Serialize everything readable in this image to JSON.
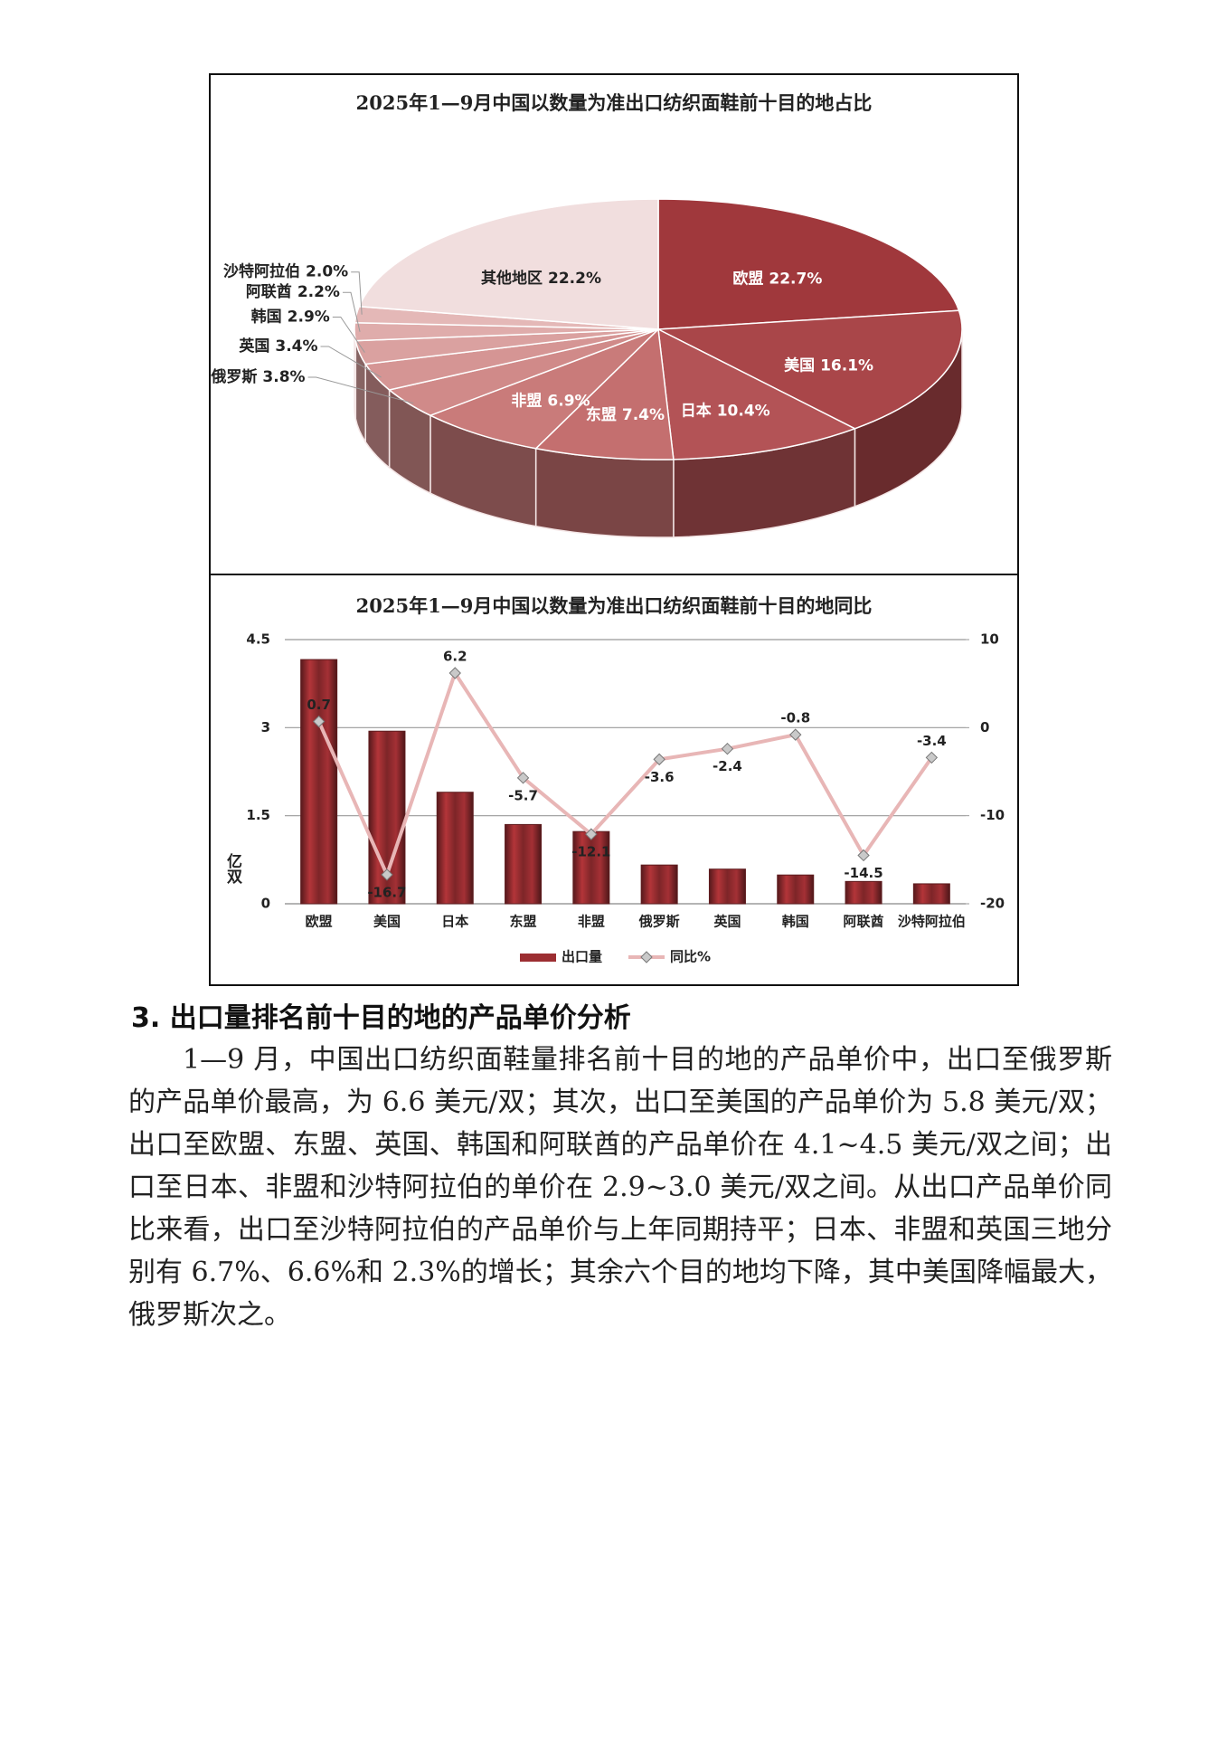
{
  "chart_data": [
    {
      "type": "pie",
      "title": "2025年1—9月中国以数量为准出口纺织面鞋前十目的地占比",
      "categories": [
        "欧盟",
        "美国",
        "日本",
        "东盟",
        "非盟",
        "俄罗斯",
        "英国",
        "韩国",
        "阿联酋",
        "沙特阿拉伯",
        "其他地区"
      ],
      "values": [
        22.7,
        16.1,
        10.4,
        7.4,
        6.9,
        3.8,
        3.4,
        2.9,
        2.2,
        2.0,
        22.2
      ],
      "value_labels": [
        "22.7%",
        "16.1%",
        "10.4%",
        "7.4%",
        "6.9%",
        "3.8%",
        "3.4%",
        "2.9%",
        "2.2%",
        "2.0%",
        "22.2%"
      ],
      "colors": [
        "#a0383c",
        "#a94649",
        "#b35356",
        "#c46f6f",
        "#c97b7a",
        "#d08a89",
        "#d59594",
        "#daa1a0",
        "#dfacab",
        "#e4b8b7",
        "#f1dede"
      ]
    },
    {
      "type": "bar",
      "title": "2025年1—9月中国以数量为准出口纺织面鞋前十目的地同比",
      "categories": [
        "欧盟",
        "美国",
        "日本",
        "东盟",
        "非盟",
        "俄罗斯",
        "英国",
        "韩国",
        "阿联酋",
        "沙特阿拉伯"
      ],
      "ylabel": "亿双",
      "series": [
        {
          "name": "出口量",
          "color": "#9c2e32",
          "values": [
            4.16,
            2.94,
            1.9,
            1.35,
            1.23,
            0.66,
            0.59,
            0.49,
            0.38,
            0.34
          ]
        },
        {
          "name": "同比%",
          "type": "line",
          "axis": "y2",
          "color": "#e8b6b6",
          "values": [
            0.7,
            -16.7,
            6.2,
            -5.7,
            -12.1,
            -3.6,
            -2.4,
            -0.8,
            -14.5,
            -3.4
          ]
        }
      ],
      "ylim": [
        0,
        4.5
      ],
      "yticks": [
        0,
        1.5,
        3,
        4.5
      ],
      "y2lim": [
        -20,
        10
      ],
      "y2ticks": [
        -20,
        -10,
        0,
        10
      ],
      "grid": true,
      "legend": "bottom"
    }
  ],
  "section": {
    "heading": "3. 出口量排名前十目的地的产品单价分析",
    "paragraph": "1—9 月，中国出口纺织面鞋量排名前十目的地的产品单价中，出口至俄罗斯的产品单价最高，为 6.6 美元/双；其次，出口至美国的产品单价为 5.8 美元/双；出口至欧盟、东盟、英国、韩国和阿联酋的产品单价在 4.1~4.5 美元/双之间；出口至日本、非盟和沙特阿拉伯的单价在 2.9~3.0 美元/双之间。从出口产品单价同比来看，出口至沙特阿拉伯的产品单价与上年同期持平；日本、非盟和英国三地分别有 6.7%、6.6%和 2.3%的增长；其余六个目的地均下降，其中美国降幅最大，俄罗斯次之。"
  }
}
